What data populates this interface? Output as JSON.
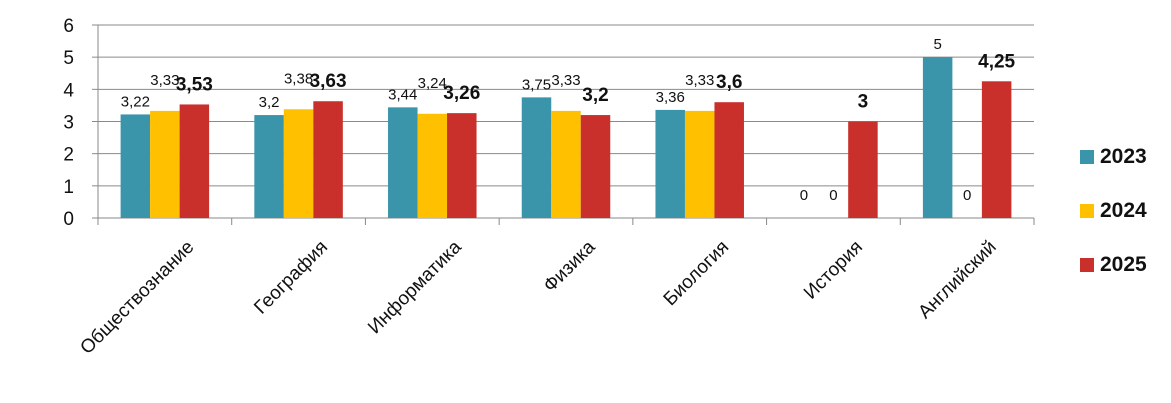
{
  "chart_data": {
    "type": "bar",
    "categories": [
      "Обществознание",
      "География",
      "Информатика",
      "Физика",
      "Биология",
      "История",
      "Английский"
    ],
    "series": [
      {
        "name": "2023",
        "color": "#3A95AA",
        "values": [
          3.22,
          3.2,
          3.44,
          3.75,
          3.36,
          0,
          5
        ],
        "labels": [
          "3,22",
          "3,2",
          "3,44",
          "3,75",
          "3,36",
          "0",
          "5"
        ]
      },
      {
        "name": "2024",
        "color": "#FFC000",
        "values": [
          3.33,
          3.38,
          3.24,
          3.33,
          3.33,
          0,
          0
        ],
        "labels": [
          "3,33",
          "3,38",
          "3,24",
          "3,33",
          "3,33",
          "0",
          "0"
        ]
      },
      {
        "name": "2025",
        "color": "#C9302C",
        "values": [
          3.53,
          3.63,
          3.26,
          3.2,
          3.6,
          3,
          4.25
        ],
        "labels": [
          "3,53",
          "3,63",
          "3,26",
          "3,2",
          "3,6",
          "3",
          "4,25"
        ]
      }
    ],
    "ylim": [
      0,
      6
    ],
    "yticks": [
      "0",
      "1",
      "2",
      "3",
      "4",
      "5",
      "6"
    ],
    "grid": true,
    "legend_position": "right"
  }
}
